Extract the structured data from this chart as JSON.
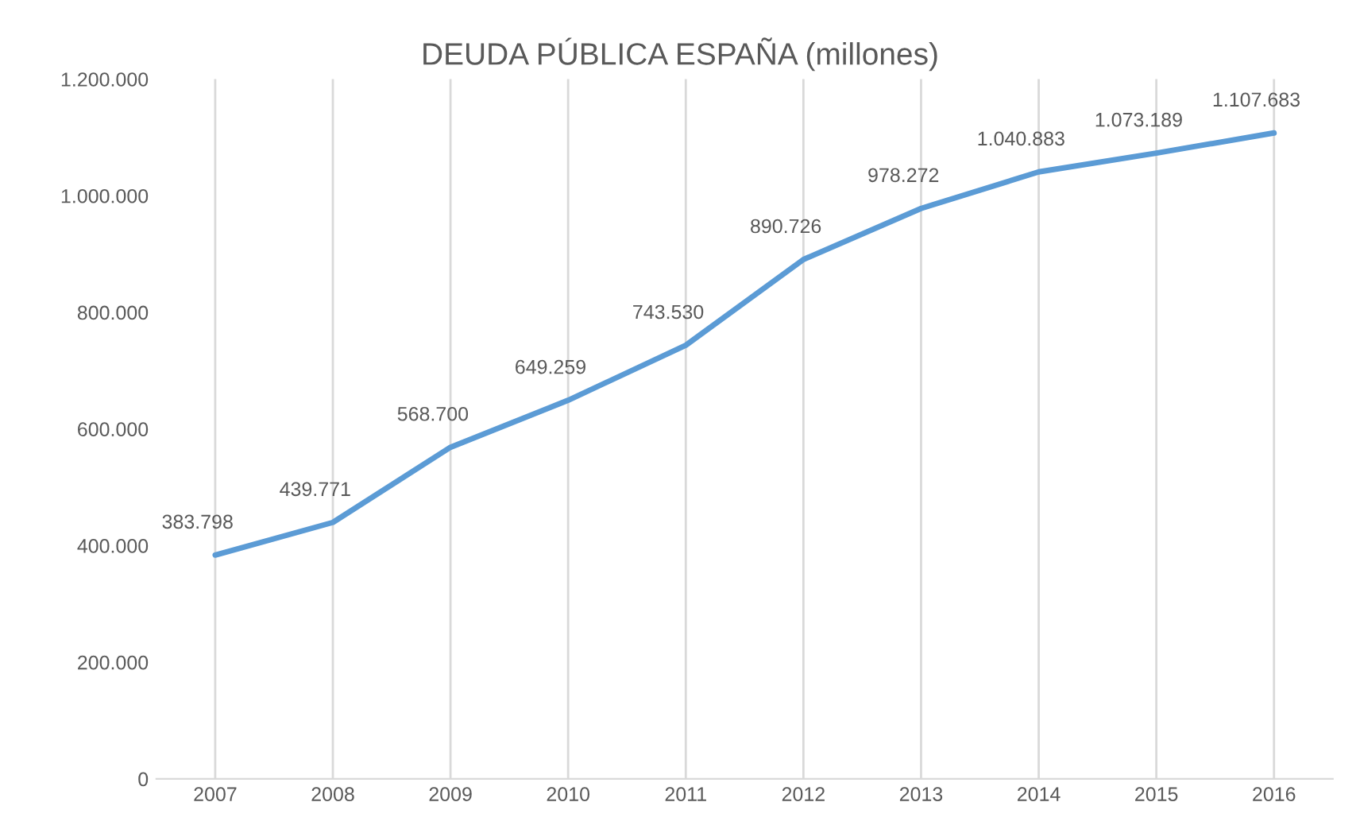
{
  "chart_data": {
    "type": "line",
    "title": "DEUDA PÚBLICA ESPAÑA (millones)",
    "categories": [
      "2007",
      "2008",
      "2009",
      "2010",
      "2011",
      "2012",
      "2013",
      "2014",
      "2015",
      "2016"
    ],
    "series": [
      {
        "color": "#5b9bd5",
        "values": [
          383798,
          439771,
          568700,
          649259,
          743530,
          890726,
          978272,
          1040883,
          1073189,
          1107683
        ],
        "value_labels": [
          "383.798",
          "439.771",
          "568.700",
          "649.259",
          "743.530",
          "890.726",
          "978.272",
          "1.040.883",
          "1.073.189",
          "1.107.683"
        ]
      }
    ],
    "ylim": [
      0,
      1200000
    ],
    "yticks": [
      {
        "value": 0,
        "label": "0"
      },
      {
        "value": 200000,
        "label": "200.000"
      },
      {
        "value": 400000,
        "label": "400.000"
      },
      {
        "value": 600000,
        "label": "600.000"
      },
      {
        "value": 800000,
        "label": "800.000"
      },
      {
        "value": 1000000,
        "label": "1.000.000"
      },
      {
        "value": 1200000,
        "label": "1.200.000"
      }
    ],
    "grid": "x",
    "legend": false,
    "marker": "none",
    "line_style": "solid"
  }
}
